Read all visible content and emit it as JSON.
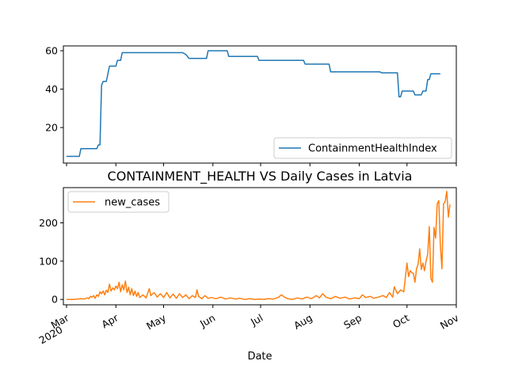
{
  "chart_data": [
    {
      "type": "line",
      "title": "",
      "xlabel": "",
      "ylabel": "",
      "ylim": [
        1.5,
        62.5
      ],
      "yticks": [
        20,
        40,
        60
      ],
      "grid": false,
      "legend_position": "lower right",
      "series": [
        {
          "name": "ContainmentHealthIndex",
          "color": "#1f77b4",
          "points": [
            [
              "2020-03-01",
              5
            ],
            [
              "2020-03-09",
              5
            ],
            [
              "2020-03-10",
              9
            ],
            [
              "2020-03-20",
              9
            ],
            [
              "2020-03-21",
              11
            ],
            [
              "2020-03-22",
              11
            ],
            [
              "2020-03-23",
              42
            ],
            [
              "2020-03-24",
              44
            ],
            [
              "2020-03-26",
              44
            ],
            [
              "2020-03-28",
              52
            ],
            [
              "2020-04-01",
              52
            ],
            [
              "2020-04-02",
              55
            ],
            [
              "2020-04-04",
              55
            ],
            [
              "2020-04-05",
              59
            ],
            [
              "2020-05-13",
              59
            ],
            [
              "2020-05-15",
              58
            ],
            [
              "2020-05-17",
              56
            ],
            [
              "2020-05-28",
              56
            ],
            [
              "2020-05-29",
              60
            ],
            [
              "2020-06-10",
              60
            ],
            [
              "2020-06-11",
              57
            ],
            [
              "2020-06-29",
              57
            ],
            [
              "2020-06-30",
              55
            ],
            [
              "2020-07-28",
              55
            ],
            [
              "2020-07-29",
              53
            ],
            [
              "2020-08-13",
              53
            ],
            [
              "2020-08-14",
              49
            ],
            [
              "2020-09-14",
              49
            ],
            [
              "2020-09-15",
              48.5
            ],
            [
              "2020-09-25",
              48.5
            ],
            [
              "2020-09-26",
              36
            ],
            [
              "2020-09-27",
              36
            ],
            [
              "2020-09-28",
              39
            ],
            [
              "2020-10-05",
              39
            ],
            [
              "2020-10-06",
              37
            ],
            [
              "2020-10-10",
              37
            ],
            [
              "2020-10-11",
              39
            ],
            [
              "2020-10-13",
              39
            ],
            [
              "2020-10-14",
              45
            ],
            [
              "2020-10-15",
              45
            ],
            [
              "2020-10-16",
              48
            ],
            [
              "2020-10-22",
              48
            ]
          ]
        }
      ]
    },
    {
      "type": "line",
      "title": "CONTAINMENT_HEALTH VS Daily Cases in Latvia",
      "xlabel": "Date",
      "ylabel": "",
      "ylim": [
        -14,
        292
      ],
      "yticks": [
        0,
        100,
        200
      ],
      "grid": false,
      "legend_position": "upper left",
      "series": [
        {
          "name": "new_cases",
          "color": "#ff7f0e",
          "points": [
            [
              "2020-03-01",
              0
            ],
            [
              "2020-03-05",
              0
            ],
            [
              "2020-03-08",
              1
            ],
            [
              "2020-03-10",
              2
            ],
            [
              "2020-03-12",
              1
            ],
            [
              "2020-03-14",
              4
            ],
            [
              "2020-03-15",
              2
            ],
            [
              "2020-03-16",
              8
            ],
            [
              "2020-03-17",
              6
            ],
            [
              "2020-03-18",
              10
            ],
            [
              "2020-03-19",
              3
            ],
            [
              "2020-03-20",
              12
            ],
            [
              "2020-03-21",
              8
            ],
            [
              "2020-03-22",
              20
            ],
            [
              "2020-03-23",
              15
            ],
            [
              "2020-03-24",
              22
            ],
            [
              "2020-03-25",
              12
            ],
            [
              "2020-03-26",
              24
            ],
            [
              "2020-03-27",
              18
            ],
            [
              "2020-03-28",
              40
            ],
            [
              "2020-03-29",
              22
            ],
            [
              "2020-03-30",
              30
            ],
            [
              "2020-03-31",
              25
            ],
            [
              "2020-04-01",
              35
            ],
            [
              "2020-04-02",
              28
            ],
            [
              "2020-04-03",
              45
            ],
            [
              "2020-04-04",
              20
            ],
            [
              "2020-04-05",
              38
            ],
            [
              "2020-04-06",
              25
            ],
            [
              "2020-04-07",
              48
            ],
            [
              "2020-04-08",
              18
            ],
            [
              "2020-04-09",
              32
            ],
            [
              "2020-04-10",
              12
            ],
            [
              "2020-04-11",
              28
            ],
            [
              "2020-04-12",
              10
            ],
            [
              "2020-04-13",
              22
            ],
            [
              "2020-04-14",
              8
            ],
            [
              "2020-04-15",
              18
            ],
            [
              "2020-04-16",
              5
            ],
            [
              "2020-04-18",
              12
            ],
            [
              "2020-04-20",
              4
            ],
            [
              "2020-04-22",
              28
            ],
            [
              "2020-04-23",
              10
            ],
            [
              "2020-04-25",
              18
            ],
            [
              "2020-04-27",
              6
            ],
            [
              "2020-04-29",
              15
            ],
            [
              "2020-05-01",
              5
            ],
            [
              "2020-05-03",
              18
            ],
            [
              "2020-05-05",
              4
            ],
            [
              "2020-05-07",
              14
            ],
            [
              "2020-05-09",
              3
            ],
            [
              "2020-05-11",
              15
            ],
            [
              "2020-05-13",
              5
            ],
            [
              "2020-05-15",
              12
            ],
            [
              "2020-05-17",
              2
            ],
            [
              "2020-05-19",
              10
            ],
            [
              "2020-05-21",
              5
            ],
            [
              "2020-05-22",
              25
            ],
            [
              "2020-05-23",
              8
            ],
            [
              "2020-05-25",
              2
            ],
            [
              "2020-05-27",
              10
            ],
            [
              "2020-05-29",
              3
            ],
            [
              "2020-05-31",
              5
            ],
            [
              "2020-06-03",
              2
            ],
            [
              "2020-06-06",
              6
            ],
            [
              "2020-06-09",
              1
            ],
            [
              "2020-06-12",
              4
            ],
            [
              "2020-06-15",
              1
            ],
            [
              "2020-06-18",
              3
            ],
            [
              "2020-06-21",
              0
            ],
            [
              "2020-06-24",
              2
            ],
            [
              "2020-06-27",
              0
            ],
            [
              "2020-06-30",
              1
            ],
            [
              "2020-07-03",
              0
            ],
            [
              "2020-07-06",
              2
            ],
            [
              "2020-07-09",
              1
            ],
            [
              "2020-07-12",
              5
            ],
            [
              "2020-07-14",
              12
            ],
            [
              "2020-07-16",
              6
            ],
            [
              "2020-07-18",
              2
            ],
            [
              "2020-07-21",
              0
            ],
            [
              "2020-07-24",
              4
            ],
            [
              "2020-07-27",
              1
            ],
            [
              "2020-07-30",
              6
            ],
            [
              "2020-08-02",
              2
            ],
            [
              "2020-08-05",
              10
            ],
            [
              "2020-08-07",
              4
            ],
            [
              "2020-08-09",
              15
            ],
            [
              "2020-08-11",
              6
            ],
            [
              "2020-08-14",
              2
            ],
            [
              "2020-08-17",
              8
            ],
            [
              "2020-08-20",
              3
            ],
            [
              "2020-08-23",
              6
            ],
            [
              "2020-08-26",
              1
            ],
            [
              "2020-08-29",
              4
            ],
            [
              "2020-09-01",
              2
            ],
            [
              "2020-09-03",
              12
            ],
            [
              "2020-09-05",
              5
            ],
            [
              "2020-09-08",
              8
            ],
            [
              "2020-09-10",
              3
            ],
            [
              "2020-09-13",
              6
            ],
            [
              "2020-09-16",
              10
            ],
            [
              "2020-09-18",
              5
            ],
            [
              "2020-09-20",
              18
            ],
            [
              "2020-09-22",
              6
            ],
            [
              "2020-09-23",
              33
            ],
            [
              "2020-09-25",
              15
            ],
            [
              "2020-09-27",
              25
            ],
            [
              "2020-09-29",
              20
            ],
            [
              "2020-10-01",
              95
            ],
            [
              "2020-10-02",
              60
            ],
            [
              "2020-10-03",
              75
            ],
            [
              "2020-10-04",
              70
            ],
            [
              "2020-10-05",
              68
            ],
            [
              "2020-10-06",
              45
            ],
            [
              "2020-10-07",
              80
            ],
            [
              "2020-10-08",
              92
            ],
            [
              "2020-10-09",
              132
            ],
            [
              "2020-10-10",
              78
            ],
            [
              "2020-10-11",
              95
            ],
            [
              "2020-10-12",
              75
            ],
            [
              "2020-10-13",
              100
            ],
            [
              "2020-10-14",
              118
            ],
            [
              "2020-10-15",
              190
            ],
            [
              "2020-10-16",
              55
            ],
            [
              "2020-10-17",
              45
            ],
            [
              "2020-10-18",
              188
            ],
            [
              "2020-10-19",
              160
            ],
            [
              "2020-10-20",
              250
            ],
            [
              "2020-10-21",
              258
            ],
            [
              "2020-10-22",
              140
            ],
            [
              "2020-10-23",
              80
            ],
            [
              "2020-10-24",
              250
            ],
            [
              "2020-10-25",
              255
            ],
            [
              "2020-10-26",
              282
            ],
            [
              "2020-10-27",
              215
            ],
            [
              "2020-10-28",
              248
            ]
          ]
        }
      ]
    }
  ],
  "shared_x": {
    "type": "date",
    "range": [
      "2020-02-28",
      "2020-11-01"
    ],
    "ticks": [
      {
        "date": "2020-03-01",
        "label": "Mar",
        "sublabel": "2020"
      },
      {
        "date": "2020-04-01",
        "label": "Apr",
        "sublabel": ""
      },
      {
        "date": "2020-05-01",
        "label": "May",
        "sublabel": ""
      },
      {
        "date": "2020-06-01",
        "label": "Jun",
        "sublabel": ""
      },
      {
        "date": "2020-07-01",
        "label": "Jul",
        "sublabel": ""
      },
      {
        "date": "2020-08-01",
        "label": "Aug",
        "sublabel": ""
      },
      {
        "date": "2020-09-01",
        "label": "Sep",
        "sublabel": ""
      },
      {
        "date": "2020-10-01",
        "label": "Oct",
        "sublabel": ""
      },
      {
        "date": "2020-11-01",
        "label": "Nov",
        "sublabel": ""
      }
    ],
    "tick_rotation_deg": 30
  }
}
